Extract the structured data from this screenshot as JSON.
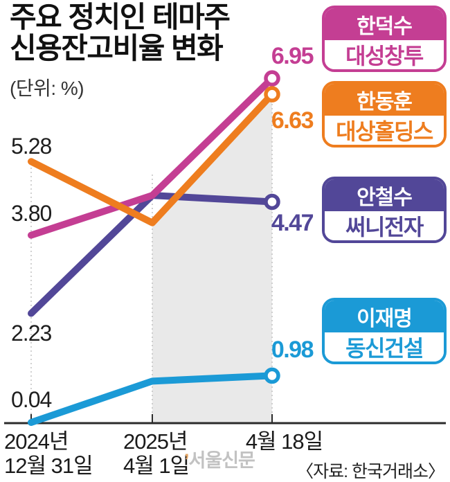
{
  "title": {
    "line1": "주요 정치인 테마주",
    "line2": "신용잔고비율 변화",
    "unit": "(단위: %)"
  },
  "chart_data": {
    "type": "line",
    "title": "주요 정치인 테마주 신용잔고비율 변화",
    "unit": "%",
    "categories": [
      "2024년 12월 31일",
      "2025년 4월 1일",
      "2025년 4월 18일"
    ],
    "tick_labels": [
      {
        "l1": "2024년",
        "l2": "12월 31일"
      },
      {
        "l1": "2025년",
        "l2": "4월 1일"
      },
      {
        "l1": "4월 18일",
        "l2": ""
      }
    ],
    "series": [
      {
        "key": "han-duck-soo",
        "politician": "한덕수",
        "stock": "대성창투",
        "color": "#c43e93",
        "values": [
          3.8,
          4.6,
          6.95
        ],
        "start_label": "3.80",
        "end_label": "6.95"
      },
      {
        "key": "han-dong-hoon",
        "politician": "한동훈",
        "stock": "대상홀딩스",
        "color": "#ee7d1f",
        "values": [
          5.28,
          4.05,
          6.63
        ],
        "start_label": "5.28",
        "end_label": "6.63"
      },
      {
        "key": "ahn-cheol-soo",
        "politician": "안철수",
        "stock": "써니전자",
        "color": "#524798",
        "values": [
          2.23,
          4.6,
          4.47
        ],
        "start_label": "2.23",
        "end_label": "4.47"
      },
      {
        "key": "lee-jae-myung",
        "politician": "이재명",
        "stock": "동신건설",
        "color": "#1b9ad6",
        "values": [
          0.04,
          0.87,
          0.98
        ],
        "start_label": "0.04",
        "end_label": "0.98"
      }
    ],
    "highlight_band": {
      "from": "2025년 4월 1일",
      "to": "2025년 4월 18일",
      "color": "#e9e9e9"
    },
    "ylim": [
      0,
      7.3
    ],
    "legend_position": "right",
    "grid": "dotted-vertical-at-ticks"
  },
  "footer": {
    "watermark_mark": "’",
    "watermark": "서울신문",
    "source": "〈자료: 한국거래소〉"
  }
}
